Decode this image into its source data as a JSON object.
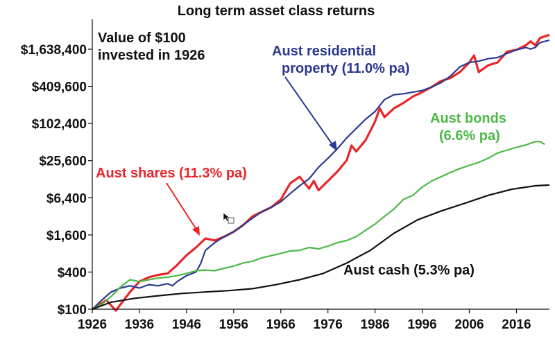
{
  "chart_data": {
    "type": "line",
    "title": "Long term asset class returns",
    "xlabel": "",
    "ylabel": "",
    "yscale": "log",
    "xlim": [
      1926,
      2023
    ],
    "ylim": [
      100,
      3000000
    ],
    "x_ticks": [
      "1926",
      "1936",
      "1946",
      "1956",
      "1966",
      "1976",
      "1986",
      "1996",
      "2006",
      "2016"
    ],
    "y_ticks": [
      {
        "value": 100,
        "label": "$100"
      },
      {
        "value": 400,
        "label": "$400"
      },
      {
        "value": 1600,
        "label": "$1,600"
      },
      {
        "value": 6400,
        "label": "$6,400"
      },
      {
        "value": 25600,
        "label": "$25,600"
      },
      {
        "value": 102400,
        "label": "$102,400"
      },
      {
        "value": 409600,
        "label": "$409,600"
      },
      {
        "value": 1638400,
        "label": "$1,638,400"
      }
    ],
    "grid": false,
    "legend": "none",
    "annotation_box": "Value of $100\ninvested in 1926",
    "series": [
      {
        "name": "Aust shares (11.3% pa)",
        "color": "#e8262a",
        "label_color": "#e8262a",
        "points": [
          [
            1926,
            100
          ],
          [
            1928,
            125
          ],
          [
            1929,
            140
          ],
          [
            1930,
            115
          ],
          [
            1931,
            95
          ],
          [
            1932,
            120
          ],
          [
            1934,
            190
          ],
          [
            1936,
            280
          ],
          [
            1938,
            330
          ],
          [
            1940,
            360
          ],
          [
            1942,
            380
          ],
          [
            1944,
            520
          ],
          [
            1946,
            750
          ],
          [
            1948,
            1000
          ],
          [
            1950,
            1400
          ],
          [
            1952,
            1300
          ],
          [
            1954,
            1500
          ],
          [
            1956,
            1800
          ],
          [
            1958,
            2300
          ],
          [
            1960,
            3200
          ],
          [
            1962,
            3800
          ],
          [
            1964,
            4500
          ],
          [
            1966,
            6000
          ],
          [
            1968,
            11000
          ],
          [
            1970,
            14000
          ],
          [
            1972,
            9000
          ],
          [
            1973,
            12000
          ],
          [
            1974,
            8500
          ],
          [
            1976,
            12000
          ],
          [
            1978,
            17000
          ],
          [
            1980,
            26000
          ],
          [
            1981,
            45000
          ],
          [
            1982,
            36000
          ],
          [
            1984,
            55000
          ],
          [
            1986,
            110000
          ],
          [
            1987,
            180000
          ],
          [
            1988,
            130000
          ],
          [
            1990,
            180000
          ],
          [
            1992,
            220000
          ],
          [
            1994,
            280000
          ],
          [
            1996,
            330000
          ],
          [
            1998,
            400000
          ],
          [
            2000,
            500000
          ],
          [
            2002,
            560000
          ],
          [
            2004,
            700000
          ],
          [
            2006,
            1000000
          ],
          [
            2007,
            1300000
          ],
          [
            2008,
            700000
          ],
          [
            2010,
            900000
          ],
          [
            2012,
            1000000
          ],
          [
            2014,
            1500000
          ],
          [
            2016,
            1600000
          ],
          [
            2018,
            1900000
          ],
          [
            2019,
            2200000
          ],
          [
            2020,
            1900000
          ],
          [
            2021,
            2500000
          ],
          [
            2023,
            2800000
          ]
        ]
      },
      {
        "name": "Aust residential property (11.0% pa)",
        "color": "#2b3990",
        "label_color": "#2b3990",
        "points": [
          [
            1926,
            100
          ],
          [
            1928,
            140
          ],
          [
            1930,
            190
          ],
          [
            1932,
            220
          ],
          [
            1934,
            240
          ],
          [
            1936,
            220
          ],
          [
            1938,
            250
          ],
          [
            1940,
            240
          ],
          [
            1942,
            260
          ],
          [
            1943,
            240
          ],
          [
            1944,
            280
          ],
          [
            1946,
            350
          ],
          [
            1948,
            400
          ],
          [
            1949,
            550
          ],
          [
            1950,
            900
          ],
          [
            1952,
            1200
          ],
          [
            1954,
            1500
          ],
          [
            1956,
            1800
          ],
          [
            1958,
            2300
          ],
          [
            1960,
            3000
          ],
          [
            1962,
            3800
          ],
          [
            1964,
            4500
          ],
          [
            1966,
            5500
          ],
          [
            1968,
            7500
          ],
          [
            1970,
            10000
          ],
          [
            1972,
            13000
          ],
          [
            1974,
            20000
          ],
          [
            1976,
            28000
          ],
          [
            1978,
            40000
          ],
          [
            1980,
            60000
          ],
          [
            1982,
            85000
          ],
          [
            1984,
            120000
          ],
          [
            1986,
            160000
          ],
          [
            1988,
            250000
          ],
          [
            1990,
            300000
          ],
          [
            1992,
            310000
          ],
          [
            1994,
            330000
          ],
          [
            1996,
            350000
          ],
          [
            1998,
            400000
          ],
          [
            2000,
            470000
          ],
          [
            2002,
            600000
          ],
          [
            2004,
            850000
          ],
          [
            2006,
            1000000
          ],
          [
            2008,
            1050000
          ],
          [
            2010,
            1150000
          ],
          [
            2012,
            1200000
          ],
          [
            2014,
            1400000
          ],
          [
            2016,
            1600000
          ],
          [
            2018,
            1750000
          ],
          [
            2019,
            1650000
          ],
          [
            2020,
            1750000
          ],
          [
            2021,
            2100000
          ],
          [
            2023,
            2300000
          ]
        ]
      },
      {
        "name": "Aust bonds (6.6% pa)",
        "color": "#4cb847",
        "label_color": "#4cb847",
        "points": [
          [
            1926,
            100
          ],
          [
            1928,
            120
          ],
          [
            1930,
            160
          ],
          [
            1932,
            230
          ],
          [
            1934,
            300
          ],
          [
            1936,
            280
          ],
          [
            1938,
            300
          ],
          [
            1940,
            320
          ],
          [
            1942,
            330
          ],
          [
            1944,
            350
          ],
          [
            1946,
            380
          ],
          [
            1948,
            420
          ],
          [
            1950,
            430
          ],
          [
            1952,
            420
          ],
          [
            1954,
            460
          ],
          [
            1956,
            500
          ],
          [
            1958,
            560
          ],
          [
            1960,
            600
          ],
          [
            1962,
            680
          ],
          [
            1964,
            740
          ],
          [
            1966,
            800
          ],
          [
            1968,
            880
          ],
          [
            1970,
            900
          ],
          [
            1972,
            1000
          ],
          [
            1974,
            950
          ],
          [
            1976,
            1050
          ],
          [
            1978,
            1200
          ],
          [
            1980,
            1300
          ],
          [
            1982,
            1500
          ],
          [
            1984,
            1900
          ],
          [
            1986,
            2400
          ],
          [
            1988,
            3200
          ],
          [
            1990,
            4200
          ],
          [
            1992,
            6000
          ],
          [
            1994,
            7000
          ],
          [
            1996,
            9500
          ],
          [
            1998,
            12000
          ],
          [
            2000,
            14000
          ],
          [
            2002,
            16500
          ],
          [
            2004,
            19000
          ],
          [
            2006,
            21500
          ],
          [
            2008,
            24000
          ],
          [
            2010,
            28000
          ],
          [
            2012,
            34000
          ],
          [
            2014,
            38000
          ],
          [
            2016,
            42000
          ],
          [
            2018,
            46000
          ],
          [
            2020,
            52000
          ],
          [
            2021,
            52000
          ],
          [
            2022,
            47000
          ]
        ]
      },
      {
        "name": "Aust cash (5.3% pa)",
        "color": "#111111",
        "label_color": "#111111",
        "points": [
          [
            1926,
            100
          ],
          [
            1930,
            130
          ],
          [
            1935,
            150
          ],
          [
            1940,
            165
          ],
          [
            1945,
            180
          ],
          [
            1950,
            190
          ],
          [
            1955,
            200
          ],
          [
            1960,
            215
          ],
          [
            1965,
            250
          ],
          [
            1970,
            300
          ],
          [
            1975,
            380
          ],
          [
            1980,
            560
          ],
          [
            1985,
            900
          ],
          [
            1990,
            1700
          ],
          [
            1995,
            2800
          ],
          [
            2000,
            3900
          ],
          [
            2005,
            5200
          ],
          [
            2010,
            7000
          ],
          [
            2015,
            8800
          ],
          [
            2020,
            10000
          ],
          [
            2023,
            10300
          ]
        ]
      }
    ]
  }
}
